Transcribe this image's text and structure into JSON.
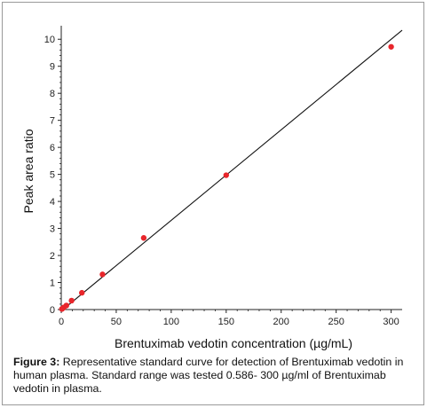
{
  "chart_data": {
    "type": "scatter",
    "xlabel": "Brentuximab vedotin concentration (µg/mL)",
    "ylabel": "Peak area ratio",
    "xlim": [
      0,
      310
    ],
    "ylim": [
      0,
      10.5
    ],
    "x_ticks": [
      "0",
      "50",
      "100",
      "150",
      "200",
      "250",
      "300"
    ],
    "y_ticks": [
      "0",
      "1",
      "2",
      "3",
      "4",
      "5",
      "6",
      "7",
      "8",
      "9",
      "10"
    ],
    "grid": false,
    "points": [
      {
        "x": 0.586,
        "y": 0.02
      },
      {
        "x": 1.17,
        "y": 0.04
      },
      {
        "x": 2.34,
        "y": 0.08
      },
      {
        "x": 4.69,
        "y": 0.15
      },
      {
        "x": 9.38,
        "y": 0.33
      },
      {
        "x": 18.75,
        "y": 0.62
      },
      {
        "x": 37.5,
        "y": 1.3
      },
      {
        "x": 75,
        "y": 2.65
      },
      {
        "x": 150,
        "y": 4.97
      },
      {
        "x": 300,
        "y": 9.72
      }
    ],
    "point_color": "#e8262b",
    "fit_line": {
      "slope": 0.0335,
      "intercept": -0.05,
      "x_range": [
        0,
        310
      ]
    }
  },
  "caption": {
    "label": "Figure 3:",
    "text": " Representative standard curve for detection of Brentuximab vedotin in human plasma. Standard range was tested 0.586- 300 µg/ml of Brentuximab vedotin in plasma."
  }
}
